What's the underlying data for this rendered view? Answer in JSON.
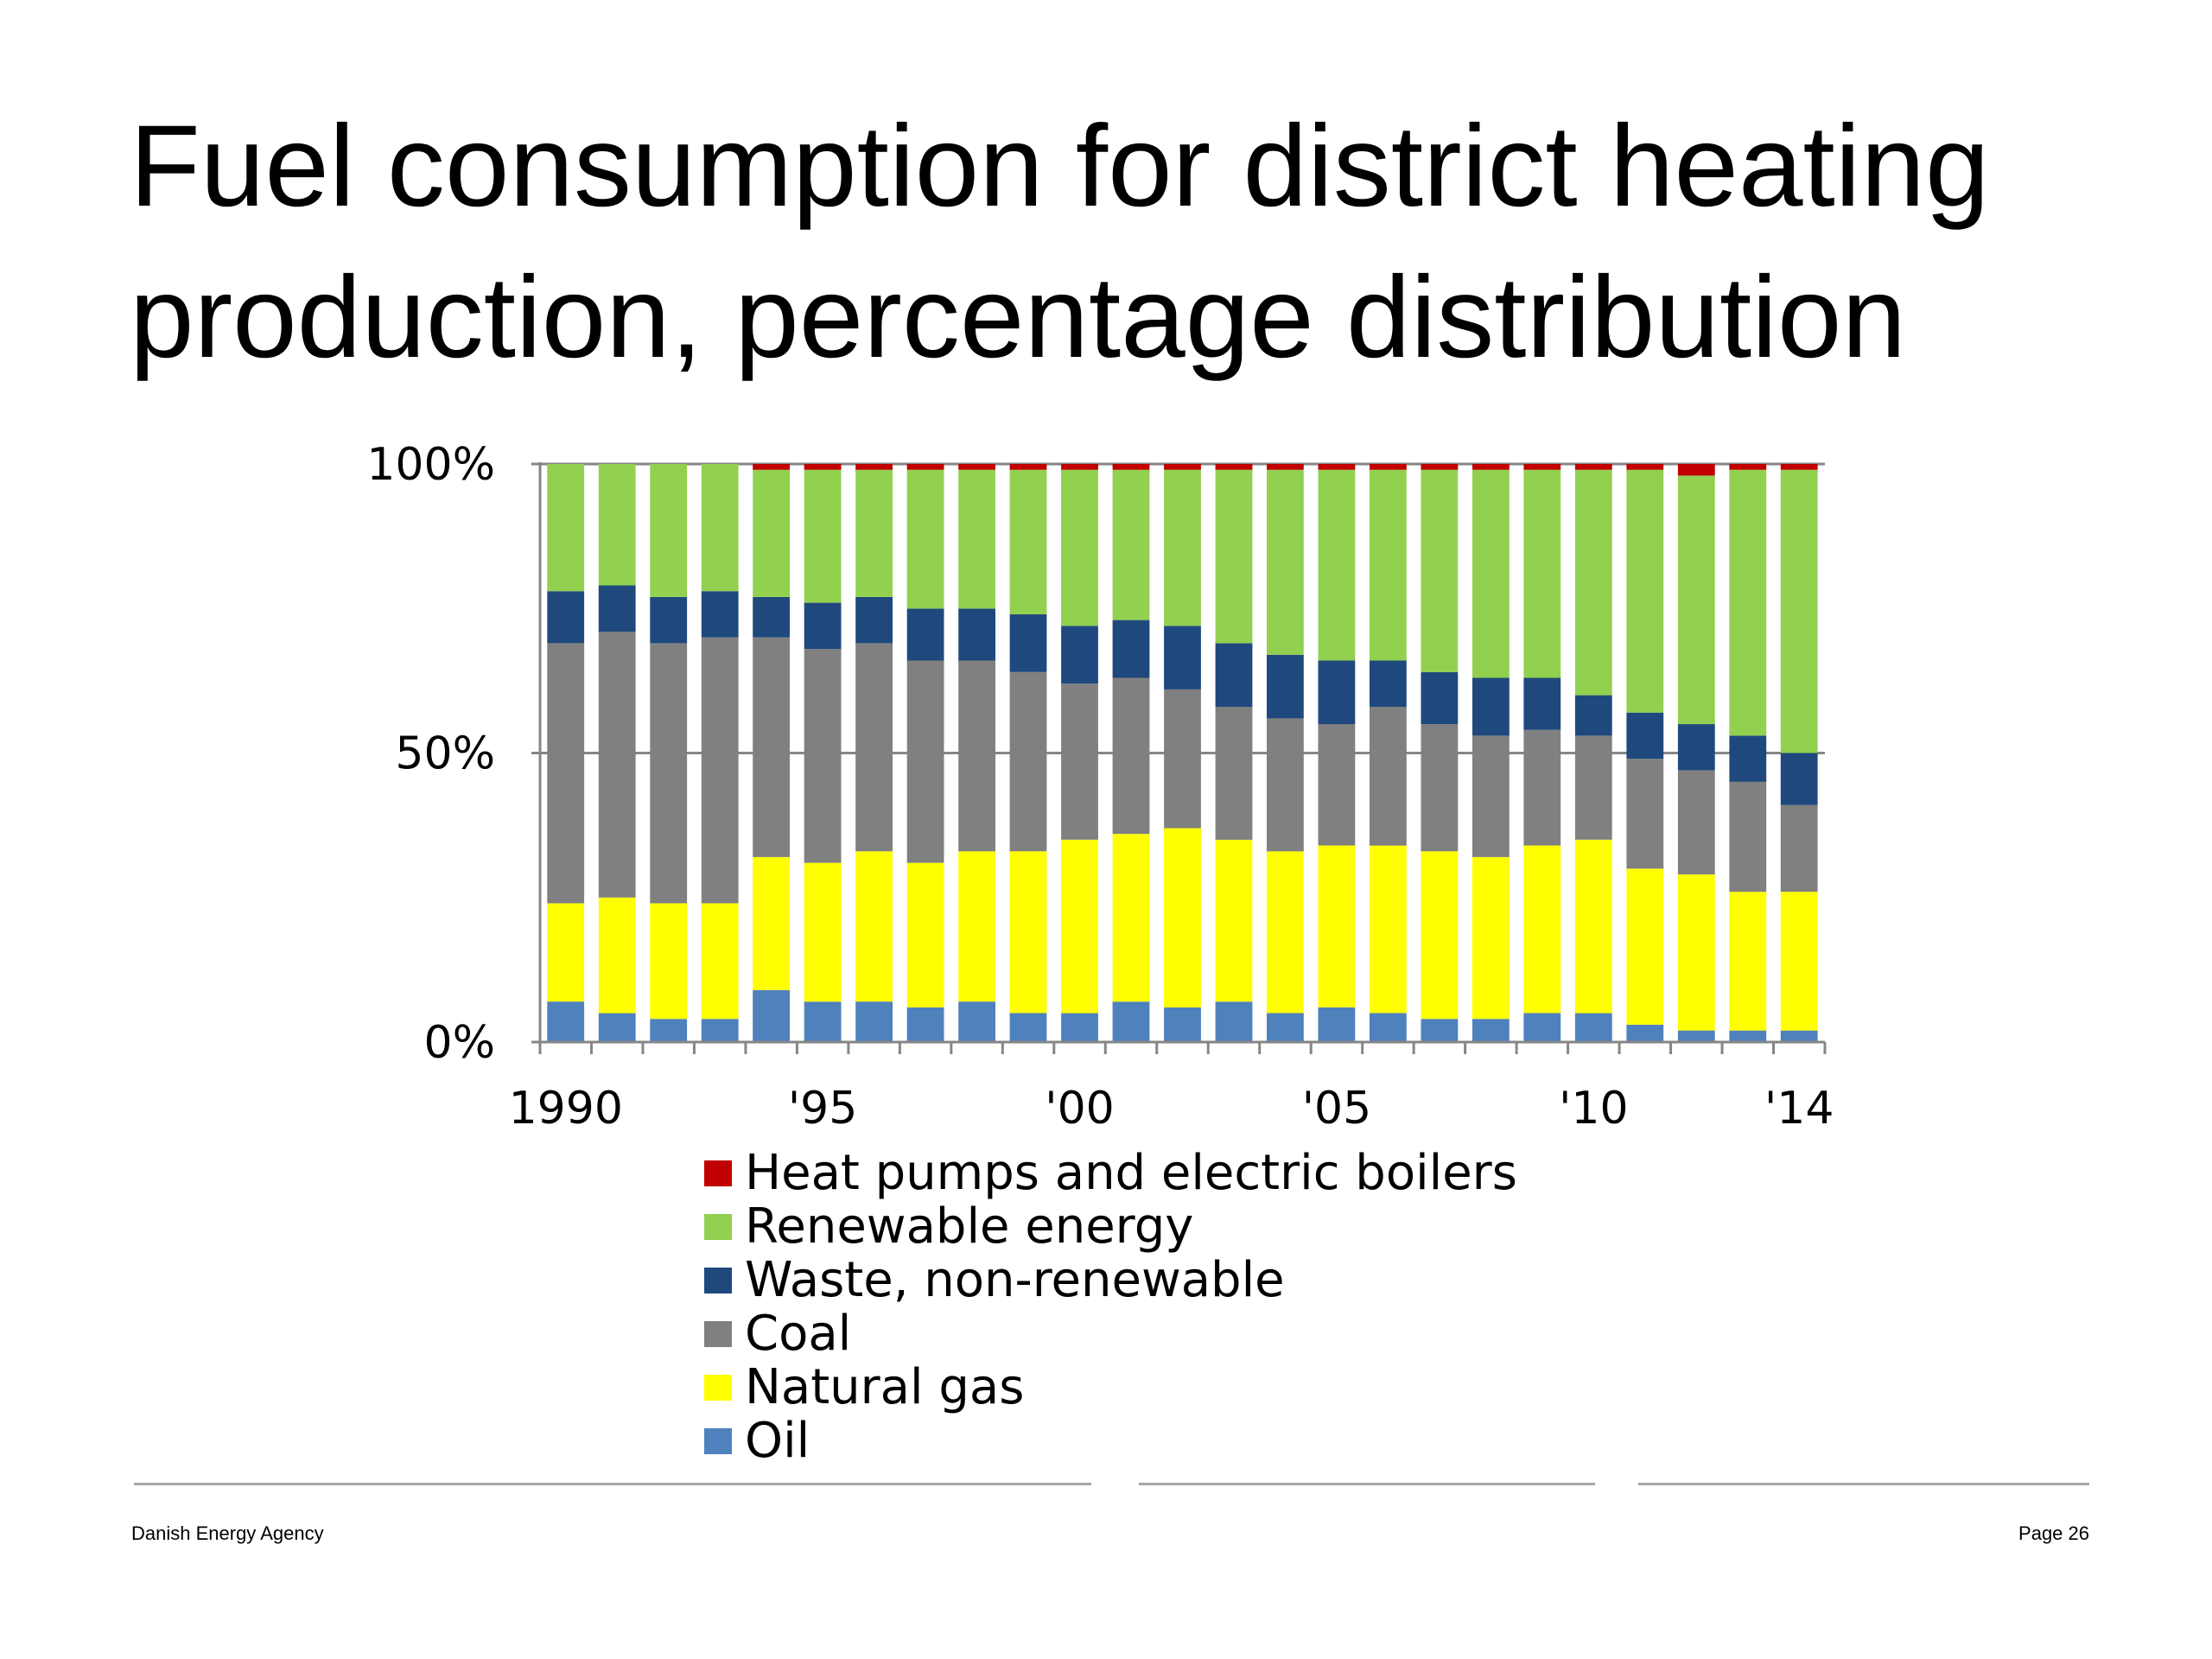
{
  "slide": {
    "title_line1": "Fuel consumption for district heating",
    "title_line2": "production, percentage distribution"
  },
  "footer": {
    "left": "Danish Energy Agency",
    "right": "Page 26"
  },
  "chart_data": {
    "type": "bar",
    "stacked": true,
    "percent": true,
    "years": [
      1990,
      1991,
      1992,
      1993,
      1994,
      1995,
      1996,
      1997,
      1998,
      1999,
      2000,
      2001,
      2002,
      2003,
      2004,
      2005,
      2006,
      2007,
      2008,
      2009,
      2010,
      2011,
      2012,
      2013,
      2014
    ],
    "x_tick_labels": [
      "1990",
      "'95",
      "'00",
      "'05",
      "'10",
      "'14"
    ],
    "x_tick_years": [
      1990,
      1995,
      2000,
      2005,
      2010,
      2014
    ],
    "y_tick_labels": [
      "0%",
      "50%",
      "100%"
    ],
    "y_tick_values": [
      0,
      50,
      100
    ],
    "ylim": [
      0,
      100
    ],
    "grid": "horizontal at 50% and 100%",
    "legend_position": "bottom",
    "series": [
      {
        "name": "Oil",
        "color": "#4f81bd",
        "values": [
          7,
          5,
          4,
          4,
          9,
          7,
          7,
          6,
          7,
          5,
          5,
          7,
          6,
          7,
          5,
          6,
          5,
          4,
          4,
          5,
          5,
          3,
          2,
          2,
          2
        ]
      },
      {
        "name": "Natural gas",
        "color": "#ffff00",
        "values": [
          17,
          20,
          20,
          20,
          23,
          24,
          26,
          25,
          26,
          28,
          30,
          29,
          31,
          28,
          28,
          28,
          29,
          29,
          28,
          29,
          30,
          27,
          27,
          24,
          24
        ]
      },
      {
        "name": "Coal",
        "color": "#808080",
        "values": [
          45,
          46,
          45,
          46,
          38,
          37,
          36,
          35,
          33,
          31,
          27,
          27,
          24,
          23,
          23,
          21,
          24,
          22,
          21,
          20,
          18,
          19,
          18,
          19,
          15
        ]
      },
      {
        "name": "Waste, non-renewable",
        "color": "#1f497d",
        "values": [
          9,
          8,
          8,
          8,
          7,
          8,
          8,
          9,
          9,
          10,
          10,
          10,
          11,
          11,
          11,
          11,
          8,
          9,
          10,
          9,
          7,
          8,
          8,
          8,
          9
        ]
      },
      {
        "name": "Renewable energy",
        "color": "#92d050",
        "values": [
          22,
          21,
          23,
          22,
          22,
          23,
          22,
          24,
          24,
          25,
          27,
          26,
          27,
          30,
          32,
          33,
          33,
          35,
          36,
          36,
          39,
          42,
          43,
          46,
          49
        ]
      },
      {
        "name": "Heat pumps and electric boilers",
        "color": "#c00000",
        "values": [
          0,
          0,
          0,
          0,
          1,
          1,
          1,
          1,
          1,
          1,
          1,
          1,
          1,
          1,
          1,
          1,
          1,
          1,
          1,
          1,
          1,
          1,
          2,
          1,
          1
        ]
      }
    ]
  }
}
